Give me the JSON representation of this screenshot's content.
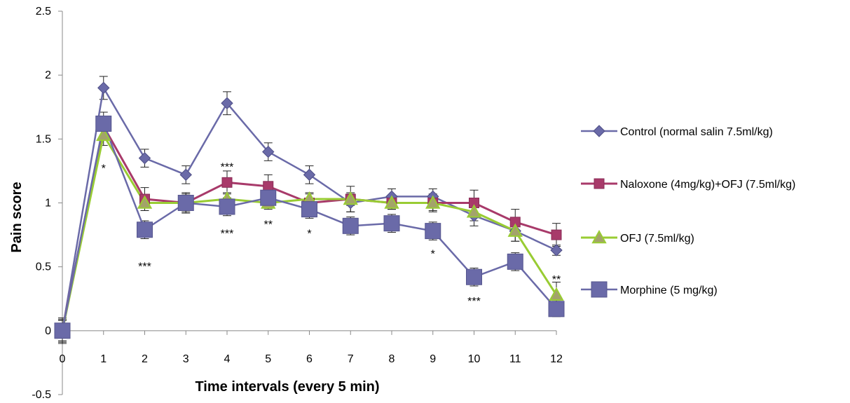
{
  "chart_data": {
    "type": "line",
    "title": "",
    "xlabel": "Time intervals (every 5 min)",
    "ylabel": "Pain score",
    "xlim": [
      0,
      12
    ],
    "ylim": [
      -0.5,
      2.5
    ],
    "x": [
      0,
      1,
      2,
      3,
      4,
      5,
      6,
      7,
      8,
      9,
      10,
      11,
      12
    ],
    "x_tick_labels": [
      "0",
      "1",
      "2",
      "3",
      "4",
      "5",
      "6",
      "7",
      "8",
      "9",
      "10",
      "11",
      "12"
    ],
    "y_ticks": [
      -0.5,
      0,
      0.5,
      1,
      1.5,
      2,
      2.5
    ],
    "y_tick_labels": [
      "-0.5",
      "0",
      "0.5",
      "1",
      "1.5",
      "2",
      "2.5"
    ],
    "grid": false,
    "legend_position": "right",
    "series": [
      {
        "name": "Control (normal salin 7.5ml/kg)",
        "color": "#6a6aa8",
        "marker": "diamond",
        "values": [
          0,
          1.9,
          1.35,
          1.22,
          1.78,
          1.4,
          1.22,
          1.0,
          1.05,
          1.05,
          0.9,
          0.78,
          0.63
        ],
        "errors": [
          0.1,
          0.09,
          0.07,
          0.07,
          0.09,
          0.07,
          0.07,
          0.07,
          0.06,
          0.06,
          0.08,
          0.08,
          0.04
        ]
      },
      {
        "name": "Naloxone (4mg/kg)+OFJ (7.5ml/kg)",
        "color": "#a83a6a",
        "marker": "square",
        "values": [
          0,
          1.6,
          1.03,
          1.0,
          1.16,
          1.13,
          1.0,
          1.03,
          1.0,
          1.0,
          1.0,
          0.85,
          0.75
        ],
        "errors": [
          0.08,
          0.08,
          0.09,
          0.07,
          0.09,
          0.09,
          0.07,
          0.1,
          0.05,
          0.07,
          0.1,
          0.1,
          0.09
        ]
      },
      {
        "name": "OFJ (7.5ml/kg)",
        "color": "#99cc33",
        "marker": "triangle",
        "values": [
          0,
          1.53,
          1.0,
          1.0,
          1.03,
          1.0,
          1.03,
          1.03,
          1.0,
          1.0,
          0.93,
          0.78,
          0.28
        ],
        "errors": [
          0.08,
          0.08,
          0.06,
          0.05,
          0.05,
          0.05,
          0.05,
          0.05,
          0.05,
          0.06,
          0.07,
          0.08,
          0.1
        ]
      },
      {
        "name": "Morphine (5 mg/kg)",
        "color": "#6a6aa8",
        "marker": "square-large",
        "values": [
          0,
          1.62,
          0.79,
          1.0,
          0.97,
          1.04,
          0.95,
          0.82,
          0.84,
          0.78,
          0.42,
          0.54,
          0.17
        ],
        "errors": [
          0.09,
          0.09,
          0.07,
          0.08,
          0.07,
          0.07,
          0.07,
          0.07,
          0.07,
          0.07,
          0.07,
          0.07,
          0.06
        ]
      }
    ],
    "annotations": [
      {
        "text": "*",
        "x": 1,
        "y": 1.27
      },
      {
        "text": "***",
        "x": 2,
        "y": 0.5
      },
      {
        "text": "***",
        "x": 4,
        "y": 1.28
      },
      {
        "text": "***",
        "x": 4,
        "y": 0.76
      },
      {
        "text": "**",
        "x": 5,
        "y": 0.83
      },
      {
        "text": "*",
        "x": 6,
        "y": 0.76
      },
      {
        "text": "*",
        "x": 9,
        "y": 0.6
      },
      {
        "text": "***",
        "x": 10,
        "y": 0.23
      },
      {
        "text": "**",
        "x": 12,
        "y": 0.4
      }
    ]
  }
}
